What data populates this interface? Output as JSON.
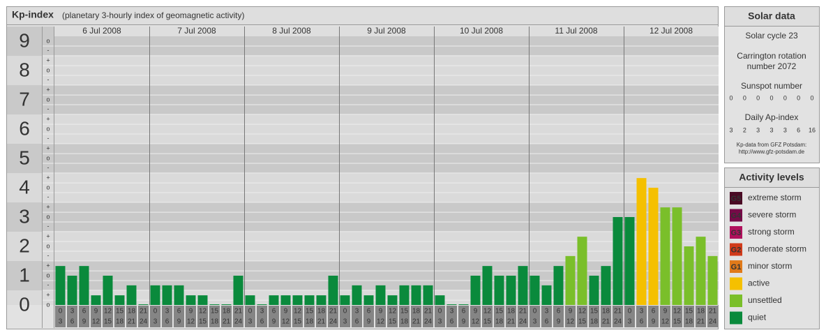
{
  "chart_data": {
    "type": "bar",
    "title": "Kp-index",
    "subtitle": "(planetary 3-hourly index of geomagnetic activity)",
    "ylim": [
      0,
      9.5
    ],
    "yticks": [
      0,
      1,
      2,
      3,
      4,
      5,
      6,
      7,
      8,
      9
    ],
    "yminor_ticks": [
      {
        "value": 0,
        "label": "o"
      },
      {
        "value": 0.33,
        "label": "+"
      },
      {
        "value": 0.67,
        "label": "-"
      },
      {
        "value": 1,
        "label": "o"
      },
      {
        "value": 1.33,
        "label": "+"
      },
      {
        "value": 1.67,
        "label": "-"
      },
      {
        "value": 2,
        "label": "o"
      },
      {
        "value": 2.33,
        "label": "+"
      },
      {
        "value": 2.67,
        "label": "-"
      },
      {
        "value": 3,
        "label": "o"
      },
      {
        "value": 3.33,
        "label": "+"
      },
      {
        "value": 3.67,
        "label": "-"
      },
      {
        "value": 4,
        "label": "o"
      },
      {
        "value": 4.33,
        "label": "+"
      },
      {
        "value": 4.67,
        "label": "-"
      },
      {
        "value": 5,
        "label": "o"
      },
      {
        "value": 5.33,
        "label": "+"
      },
      {
        "value": 5.67,
        "label": "-"
      },
      {
        "value": 6,
        "label": "o"
      },
      {
        "value": 6.33,
        "label": "+"
      },
      {
        "value": 6.67,
        "label": "-"
      },
      {
        "value": 7,
        "label": "o"
      },
      {
        "value": 7.33,
        "label": "+"
      },
      {
        "value": 7.67,
        "label": "-"
      },
      {
        "value": 8,
        "label": "o"
      },
      {
        "value": 8.33,
        "label": "+"
      },
      {
        "value": 8.67,
        "label": "-"
      },
      {
        "value": 9,
        "label": "o"
      }
    ],
    "interval_labels": [
      {
        "from": "0",
        "to": "3"
      },
      {
        "from": "3",
        "to": "6"
      },
      {
        "from": "6",
        "to": "9"
      },
      {
        "from": "9",
        "to": "12"
      },
      {
        "from": "12",
        "to": "15"
      },
      {
        "from": "15",
        "to": "18"
      },
      {
        "from": "18",
        "to": "21"
      },
      {
        "from": "21",
        "to": "24"
      }
    ],
    "days": [
      {
        "date": "6 Jul 2008",
        "values": [
          1.33,
          1,
          1.33,
          0.33,
          1,
          0.33,
          0.67,
          0
        ],
        "colors": [
          "#0a8a3c",
          "#0a8a3c",
          "#0a8a3c",
          "#0a8a3c",
          "#0a8a3c",
          "#0a8a3c",
          "#0a8a3c",
          "#0a8a3c"
        ]
      },
      {
        "date": "7 Jul 2008",
        "values": [
          0.67,
          0.67,
          0.67,
          0.33,
          0.33,
          0,
          0,
          1
        ],
        "colors": [
          "#0a8a3c",
          "#0a8a3c",
          "#0a8a3c",
          "#0a8a3c",
          "#0a8a3c",
          "#0a8a3c",
          "#0a8a3c",
          "#0a8a3c"
        ]
      },
      {
        "date": "8 Jul 2008",
        "values": [
          0.33,
          0,
          0.33,
          0.33,
          0.33,
          0.33,
          0.33,
          1
        ],
        "colors": [
          "#0a8a3c",
          "#0a8a3c",
          "#0a8a3c",
          "#0a8a3c",
          "#0a8a3c",
          "#0a8a3c",
          "#0a8a3c",
          "#0a8a3c"
        ]
      },
      {
        "date": "9 Jul 2008",
        "values": [
          0.33,
          0.67,
          0.33,
          0.67,
          0.33,
          0.67,
          0.67,
          0.67
        ],
        "colors": [
          "#0a8a3c",
          "#0a8a3c",
          "#0a8a3c",
          "#0a8a3c",
          "#0a8a3c",
          "#0a8a3c",
          "#0a8a3c",
          "#0a8a3c"
        ]
      },
      {
        "date": "10 Jul 2008",
        "values": [
          0.33,
          0,
          0,
          1,
          1.33,
          1,
          1,
          1.33
        ],
        "colors": [
          "#0a8a3c",
          "#0a8a3c",
          "#0a8a3c",
          "#0a8a3c",
          "#0a8a3c",
          "#0a8a3c",
          "#0a8a3c",
          "#0a8a3c"
        ]
      },
      {
        "date": "11 Jul 2008",
        "values": [
          1,
          0.67,
          1.33,
          1.67,
          2.33,
          1,
          1.33,
          3
        ],
        "colors": [
          "#0a8a3c",
          "#0a8a3c",
          "#0a8a3c",
          "#7abf2a",
          "#7abf2a",
          "#0a8a3c",
          "#0a8a3c",
          "#0a8a3c"
        ]
      },
      {
        "date": "12 Jul 2008",
        "values": [
          3,
          4.33,
          4,
          3.33,
          3.33,
          2,
          2.33,
          1.67
        ],
        "colors": [
          "#0a8a3c",
          "#f5c000",
          "#f5c000",
          "#7abf2a",
          "#7abf2a",
          "#7abf2a",
          "#7abf2a",
          "#7abf2a"
        ]
      }
    ]
  },
  "solar_data": {
    "title": "Solar data",
    "cycle": "Solar cycle 23",
    "carrington": [
      "Carrington rotation",
      "number 2072"
    ],
    "sunspot_title": "Sunspot number",
    "sunspot_values": [
      0,
      0,
      0,
      0,
      0,
      0,
      0
    ],
    "ap_title": "Daily Ap-index",
    "ap_values": [
      3,
      2,
      3,
      3,
      3,
      6,
      16
    ],
    "source": "Kp-data from GFZ Potsdam:",
    "source_url": "http://www.gfz-potsdam.de"
  },
  "activity_levels": {
    "title": "Activity levels",
    "items": [
      {
        "code": "G5",
        "name": "extreme storm",
        "color": "#4a0a24"
      },
      {
        "code": "G4",
        "name": "severe storm",
        "color": "#760a48"
      },
      {
        "code": "G3",
        "name": "strong storm",
        "color": "#b0105c"
      },
      {
        "code": "G2",
        "name": "moderate storm",
        "color": "#d03a1a"
      },
      {
        "code": "G1",
        "name": "minor storm",
        "color": "#e07a1a"
      },
      {
        "name": "active",
        "color": "#f5c000"
      },
      {
        "name": "unsettled",
        "color": "#7abf2a"
      },
      {
        "name": "quiet",
        "color": "#0a8a3c"
      }
    ]
  }
}
